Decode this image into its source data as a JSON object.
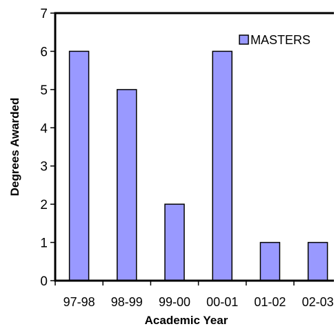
{
  "chart_data": {
    "type": "bar",
    "title": "",
    "xlabel": "Academic Year",
    "ylabel": "Degrees Awarded",
    "categories": [
      "97-98",
      "98-99",
      "99-00",
      "00-01",
      "01-02",
      "02-03"
    ],
    "series": [
      {
        "name": "MASTERS",
        "values": [
          6,
          5,
          2,
          6,
          1,
          1
        ],
        "color": "#9999ff",
        "border_color": "#000000"
      }
    ],
    "ylim": [
      0,
      7
    ],
    "yticks": [
      "0",
      "1",
      "2",
      "3",
      "4",
      "5",
      "6",
      "7"
    ],
    "grid": false,
    "legend_position": "top-right"
  }
}
